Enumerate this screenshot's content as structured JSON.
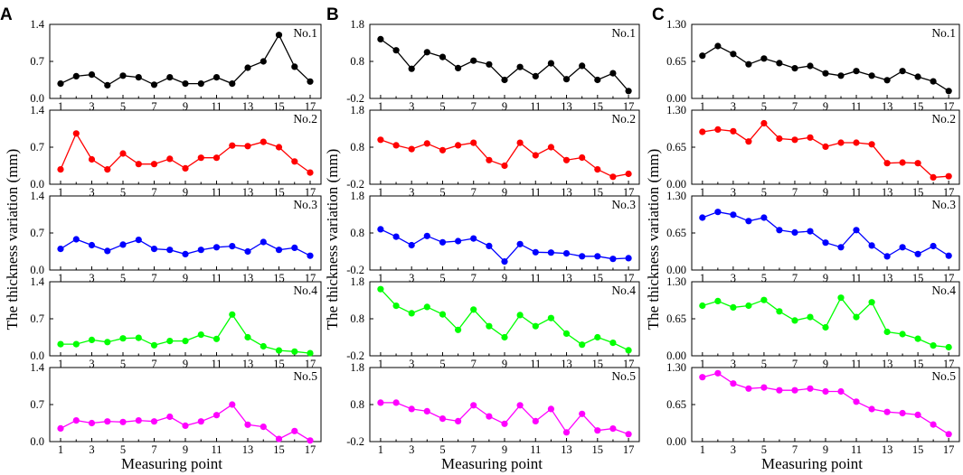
{
  "figure": {
    "ylabel": "The thickness variation (mm)",
    "xlabel": "Measuring point"
  },
  "chart_data": [
    {
      "type": "line",
      "panel": "A",
      "x": [
        1,
        2,
        3,
        4,
        5,
        6,
        7,
        8,
        9,
        10,
        11,
        12,
        13,
        14,
        15,
        16,
        17
      ],
      "xticks": [
        1,
        3,
        5,
        7,
        9,
        11,
        13,
        15,
        17
      ],
      "ylim": [
        0,
        1.4
      ],
      "yticks": [
        0,
        0.7,
        1.4
      ],
      "ytick_labels": [
        "0.0",
        "0.7",
        "1.4"
      ],
      "xlabel": "Measuring point",
      "ylabel": "The thickness variation (mm)",
      "series": [
        {
          "name": "No.1",
          "color": "#000000",
          "values": [
            0.28,
            0.42,
            0.45,
            0.25,
            0.43,
            0.4,
            0.26,
            0.4,
            0.28,
            0.28,
            0.4,
            0.28,
            0.58,
            0.7,
            1.2,
            0.6,
            0.32
          ]
        },
        {
          "name": "No.2",
          "color": "#ff0000",
          "values": [
            0.28,
            0.96,
            0.47,
            0.28,
            0.58,
            0.38,
            0.38,
            0.48,
            0.3,
            0.5,
            0.5,
            0.73,
            0.72,
            0.8,
            0.7,
            0.43,
            0.22
          ]
        },
        {
          "name": "No.3",
          "color": "#0000ff",
          "values": [
            0.4,
            0.58,
            0.47,
            0.36,
            0.48,
            0.57,
            0.4,
            0.38,
            0.3,
            0.38,
            0.43,
            0.45,
            0.35,
            0.53,
            0.38,
            0.42,
            0.27
          ]
        },
        {
          "name": "No.4",
          "color": "#00ff00",
          "values": [
            0.22,
            0.22,
            0.3,
            0.26,
            0.33,
            0.34,
            0.2,
            0.28,
            0.28,
            0.4,
            0.32,
            0.78,
            0.35,
            0.18,
            0.1,
            0.08,
            0.05
          ]
        },
        {
          "name": "No.5",
          "color": "#ff00ff",
          "values": [
            0.25,
            0.4,
            0.35,
            0.38,
            0.37,
            0.4,
            0.38,
            0.47,
            0.3,
            0.38,
            0.5,
            0.7,
            0.32,
            0.28,
            0.05,
            0.2,
            0.02
          ]
        }
      ]
    },
    {
      "type": "line",
      "panel": "B",
      "x": [
        1,
        2,
        3,
        4,
        5,
        6,
        7,
        8,
        9,
        10,
        11,
        12,
        13,
        14,
        15,
        16,
        17
      ],
      "xticks": [
        1,
        3,
        5,
        7,
        9,
        11,
        13,
        15,
        17
      ],
      "ylim": [
        -0.2,
        1.8
      ],
      "yticks": [
        -0.2,
        0.8,
        1.8
      ],
      "ytick_labels": [
        "-0.2",
        "0.8",
        "1.8"
      ],
      "xlabel": "Measuring point",
      "ylabel": "The thickness variation (mm)",
      "series": [
        {
          "name": "No.1",
          "color": "#000000",
          "values": [
            1.4,
            1.1,
            0.6,
            1.05,
            0.92,
            0.62,
            0.82,
            0.72,
            0.3,
            0.65,
            0.4,
            0.75,
            0.32,
            0.68,
            0.3,
            0.48,
            0.0
          ]
        },
        {
          "name": "No.2",
          "color": "#ff0000",
          "values": [
            1.0,
            0.85,
            0.75,
            0.9,
            0.72,
            0.85,
            0.92,
            0.45,
            0.3,
            0.92,
            0.58,
            0.8,
            0.45,
            0.52,
            0.2,
            0.0,
            0.08
          ]
        },
        {
          "name": "No.3",
          "color": "#0000ff",
          "values": [
            0.9,
            0.7,
            0.47,
            0.72,
            0.55,
            0.58,
            0.65,
            0.45,
            0.03,
            0.5,
            0.28,
            0.27,
            0.25,
            0.17,
            0.17,
            0.1,
            0.12
          ]
        },
        {
          "name": "No.4",
          "color": "#00ff00",
          "values": [
            1.6,
            1.15,
            0.95,
            1.12,
            0.92,
            0.5,
            1.05,
            0.6,
            0.3,
            0.9,
            0.6,
            0.82,
            0.4,
            0.1,
            0.3,
            0.15,
            -0.05
          ]
        },
        {
          "name": "No.5",
          "color": "#ff00ff",
          "values": [
            0.85,
            0.85,
            0.68,
            0.62,
            0.42,
            0.35,
            0.78,
            0.48,
            0.28,
            0.78,
            0.35,
            0.68,
            0.05,
            0.55,
            0.1,
            0.15,
            0.0
          ]
        }
      ]
    },
    {
      "type": "line",
      "panel": "C",
      "x": [
        1,
        2,
        3,
        4,
        5,
        6,
        7,
        8,
        9,
        10,
        11,
        12,
        13,
        14,
        15,
        16,
        17
      ],
      "xticks": [
        1,
        3,
        5,
        7,
        9,
        11,
        13,
        15,
        17
      ],
      "ylim": [
        0,
        1.3
      ],
      "yticks": [
        0,
        0.65,
        1.3
      ],
      "ytick_labels": [
        "0.00",
        "0.65",
        "1.30"
      ],
      "xlabel": "Measuring point",
      "ylabel": "The thickness variation (mm)",
      "series": [
        {
          "name": "No.1",
          "color": "#000000",
          "values": [
            0.75,
            0.92,
            0.78,
            0.6,
            0.7,
            0.62,
            0.53,
            0.57,
            0.44,
            0.4,
            0.48,
            0.4,
            0.32,
            0.48,
            0.38,
            0.3,
            0.13
          ]
        },
        {
          "name": "No.2",
          "color": "#ff0000",
          "values": [
            0.92,
            0.96,
            0.93,
            0.75,
            1.07,
            0.8,
            0.78,
            0.82,
            0.66,
            0.73,
            0.73,
            0.7,
            0.37,
            0.38,
            0.37,
            0.12,
            0.14
          ]
        },
        {
          "name": "No.3",
          "color": "#0000ff",
          "values": [
            0.92,
            1.02,
            0.97,
            0.86,
            0.92,
            0.7,
            0.66,
            0.68,
            0.48,
            0.4,
            0.7,
            0.43,
            0.24,
            0.4,
            0.28,
            0.42,
            0.25
          ]
        },
        {
          "name": "No.4",
          "color": "#00ff00",
          "values": [
            0.88,
            0.96,
            0.85,
            0.88,
            0.98,
            0.78,
            0.62,
            0.68,
            0.5,
            1.02,
            0.68,
            0.94,
            0.42,
            0.38,
            0.3,
            0.18,
            0.15
          ]
        },
        {
          "name": "No.5",
          "color": "#ff00ff",
          "values": [
            1.13,
            1.2,
            1.02,
            0.93,
            0.95,
            0.9,
            0.9,
            0.93,
            0.88,
            0.88,
            0.7,
            0.57,
            0.52,
            0.5,
            0.47,
            0.3,
            0.13
          ]
        }
      ]
    }
  ]
}
